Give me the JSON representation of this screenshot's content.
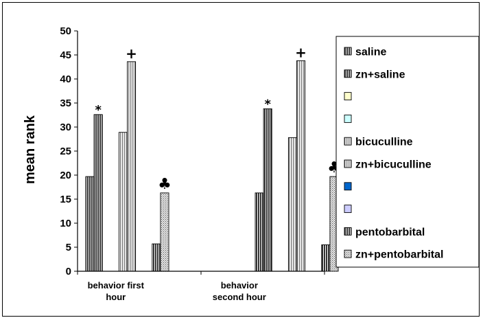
{
  "chart_data": {
    "type": "bar",
    "title": "",
    "xlabel": "",
    "ylabel": "mean rank",
    "ylim": [
      0,
      50
    ],
    "yticks": [
      0,
      5,
      10,
      15,
      20,
      25,
      30,
      35,
      40,
      45,
      50
    ],
    "grid": false,
    "legend_position": "right",
    "categories": [
      [
        "behavior first",
        "hour"
      ],
      [
        "behavior",
        "second hour"
      ]
    ],
    "series": [
      {
        "name": "saline",
        "values": [
          19.7,
          16.3
        ],
        "color": "#ffffff",
        "pattern": "dark-vertical"
      },
      {
        "name": "zn+saline",
        "values": [
          32.6,
          33.8
        ],
        "color": "#ffffff",
        "pattern": "dark-vertical"
      },
      {
        "name": "",
        "values": [
          null,
          null
        ],
        "color": "#ffffcc",
        "pattern": "solid"
      },
      {
        "name": "",
        "values": [
          null,
          null
        ],
        "color": "#ccffff",
        "pattern": "solid"
      },
      {
        "name": "bicuculline",
        "values": [
          28.9,
          27.8
        ],
        "color": "#ffffff",
        "pattern": "light-vertical"
      },
      {
        "name": "zn+bicuculline",
        "values": [
          43.6,
          43.8
        ],
        "color": "#ffffff",
        "pattern": "light-vertical"
      },
      {
        "name": "",
        "values": [
          null,
          null
        ],
        "color": "#0066cc",
        "pattern": "solid"
      },
      {
        "name": "",
        "values": [
          null,
          null
        ],
        "color": "#ccccff",
        "pattern": "solid"
      },
      {
        "name": "pentobarbital",
        "values": [
          5.7,
          5.5
        ],
        "color": "#ffffff",
        "pattern": "dark-vertical"
      },
      {
        "name": "zn+pentobarbital",
        "values": [
          16.3,
          19.7
        ],
        "color": "#ffffff",
        "pattern": "dotted"
      }
    ],
    "annotations": [
      {
        "text": "*",
        "category": 0,
        "series": 1
      },
      {
        "text": "+",
        "category": 0,
        "series": 5
      },
      {
        "text": "♣",
        "category": 0,
        "series": 9
      },
      {
        "text": "*",
        "category": 1,
        "series": 1
      },
      {
        "text": "+",
        "category": 1,
        "series": 5
      },
      {
        "text": "♣",
        "category": 1,
        "series": 9
      }
    ]
  }
}
